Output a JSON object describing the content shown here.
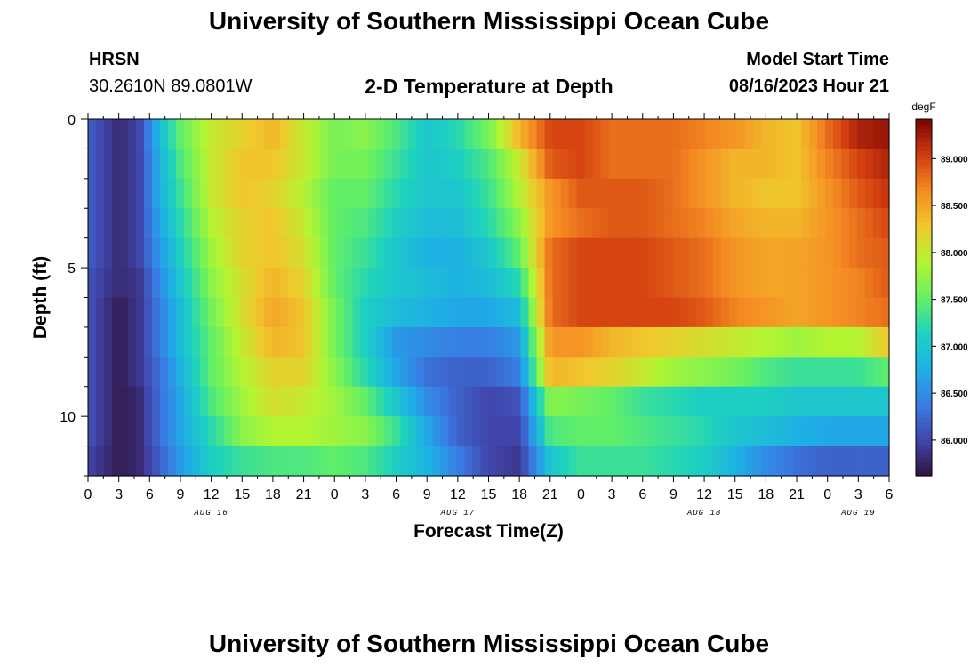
{
  "page": {
    "title_top": "University of Southern Mississippi Ocean Cube",
    "title_bottom": "University of Southern Mississippi Ocean Cube",
    "station": "HRSN",
    "coords": "30.2610N  89.0801W",
    "plot_title": "2-D Temperature at Depth",
    "model_label": "Model Start Time",
    "model_time": "08/16/2023 Hour 21"
  },
  "chart_data": {
    "type": "heatmap",
    "title": "2-D Temperature at Depth",
    "xlabel": "Forecast Time(Z)",
    "ylabel": "Depth (ft)",
    "x_range_hours": [
      0,
      78
    ],
    "y_range_ft": [
      0,
      12
    ],
    "x_tick_labels": [
      "0",
      "3",
      "6",
      "9",
      "12",
      "15",
      "18",
      "21",
      "0",
      "3",
      "6",
      "9",
      "12",
      "15",
      "18",
      "21",
      "0",
      "3",
      "6",
      "9",
      "12",
      "15",
      "18",
      "21",
      "0",
      "3",
      "6"
    ],
    "y_tick_labels": [
      "0",
      "5",
      "10"
    ],
    "day_labels": [
      {
        "label": "AUG 16",
        "hour": 12
      },
      {
        "label": "AUG 17",
        "hour": 36
      },
      {
        "label": "AUG 18",
        "hour": 60
      },
      {
        "label": "AUG 19",
        "hour": 75
      }
    ],
    "colorbar": {
      "unit": "degF",
      "min": 85.62,
      "max": 89.42,
      "ticks": [
        "86.000",
        "86.500",
        "87.000",
        "87.500",
        "88.000",
        "88.500",
        "89.000"
      ]
    },
    "depth_layers_ft": [
      0.5,
      1.5,
      2.5,
      3.5,
      4.5,
      5.5,
      6.5,
      7.5,
      8.5,
      9.5,
      10.5,
      11.5
    ],
    "keyframes_hours": [
      0,
      3,
      5,
      7,
      9,
      12,
      15,
      18,
      21,
      24,
      27,
      30,
      33,
      36,
      39,
      42,
      45,
      48,
      51,
      54,
      57,
      60,
      63,
      66,
      69,
      72,
      75,
      78
    ],
    "temperature_degF": [
      [
        86.2,
        85.8,
        86.0,
        86.9,
        87.5,
        88.0,
        88.2,
        88.4,
        88.0,
        87.6,
        87.7,
        87.4,
        87.0,
        87.2,
        87.6,
        88.4,
        89.0,
        89.0,
        88.8,
        88.8,
        88.8,
        88.7,
        88.6,
        88.4,
        88.3,
        88.8,
        89.2,
        89.3
      ],
      [
        86.2,
        85.8,
        86.0,
        86.8,
        87.4,
        88.0,
        88.3,
        88.3,
        88.0,
        87.6,
        87.6,
        87.3,
        87.0,
        87.1,
        87.4,
        88.0,
        88.9,
        89.0,
        88.8,
        88.8,
        88.8,
        88.6,
        88.4,
        88.4,
        88.3,
        88.7,
        89.0,
        89.2
      ],
      [
        86.2,
        85.8,
        86.0,
        86.8,
        87.3,
        88.0,
        88.3,
        88.2,
        87.9,
        87.5,
        87.5,
        87.2,
        87.0,
        87.0,
        87.3,
        87.9,
        88.6,
        88.9,
        88.9,
        88.9,
        88.8,
        88.6,
        88.4,
        88.3,
        88.3,
        88.6,
        88.9,
        89.1
      ],
      [
        86.2,
        85.8,
        86.0,
        86.7,
        87.2,
        87.9,
        88.2,
        88.3,
        88.0,
        87.5,
        87.4,
        87.1,
        86.9,
        86.9,
        87.2,
        87.7,
        88.6,
        88.8,
        88.9,
        88.9,
        88.8,
        88.7,
        88.5,
        88.4,
        88.4,
        88.6,
        88.8,
        89.0
      ],
      [
        86.2,
        85.8,
        86.0,
        86.6,
        87.1,
        87.8,
        88.2,
        88.3,
        88.1,
        87.5,
        87.3,
        87.0,
        86.8,
        86.8,
        87.0,
        87.5,
        88.8,
        89.0,
        89.0,
        89.0,
        88.9,
        88.8,
        88.6,
        88.5,
        88.5,
        88.6,
        88.8,
        88.9
      ],
      [
        86.1,
        85.8,
        85.9,
        86.5,
        87.0,
        87.7,
        88.1,
        88.4,
        88.2,
        87.5,
        87.2,
        87.0,
        86.9,
        86.8,
        86.9,
        87.2,
        88.8,
        89.0,
        89.0,
        89.0,
        88.9,
        88.8,
        88.6,
        88.5,
        88.5,
        88.6,
        88.7,
        88.9
      ],
      [
        86.1,
        85.7,
        85.9,
        86.4,
        86.9,
        87.6,
        88.1,
        88.5,
        88.3,
        87.6,
        87.1,
        86.9,
        86.8,
        86.7,
        86.7,
        86.9,
        88.8,
        89.0,
        89.0,
        89.0,
        89.0,
        88.9,
        88.7,
        88.6,
        88.5,
        88.6,
        88.7,
        88.8
      ],
      [
        86.1,
        85.7,
        85.9,
        86.4,
        86.9,
        87.5,
        88.0,
        88.4,
        88.3,
        87.6,
        87.1,
        86.6,
        86.5,
        86.4,
        86.4,
        86.6,
        88.6,
        88.6,
        88.4,
        88.3,
        88.2,
        88.1,
        88.0,
        87.9,
        87.8,
        87.9,
        87.9,
        88.3
      ],
      [
        86.1,
        85.7,
        85.9,
        86.3,
        86.8,
        87.5,
        87.9,
        88.2,
        88.2,
        87.7,
        87.2,
        86.7,
        86.3,
        86.2,
        86.2,
        86.4,
        88.4,
        88.3,
        88.2,
        88.0,
        87.8,
        87.7,
        87.6,
        87.4,
        87.3,
        87.3,
        87.3,
        87.5
      ],
      [
        86.1,
        85.7,
        85.8,
        86.3,
        86.7,
        87.4,
        87.8,
        88.1,
        88.0,
        87.8,
        87.5,
        87.0,
        86.5,
        86.2,
        86.0,
        86.1,
        87.7,
        87.6,
        87.5,
        87.3,
        87.2,
        87.1,
        87.1,
        87.1,
        87.0,
        87.0,
        87.0,
        87.0
      ],
      [
        86.1,
        85.7,
        85.8,
        86.3,
        86.7,
        87.2,
        87.7,
        87.9,
        87.9,
        87.8,
        87.7,
        87.3,
        86.7,
        86.2,
        86.0,
        86.0,
        87.4,
        87.5,
        87.5,
        87.4,
        87.3,
        87.2,
        87.0,
        86.9,
        86.8,
        86.7,
        86.7,
        86.7
      ],
      [
        86.0,
        85.7,
        85.8,
        86.2,
        86.6,
        87.1,
        87.3,
        87.4,
        87.4,
        87.5,
        87.4,
        87.1,
        86.8,
        86.4,
        86.0,
        85.9,
        87.0,
        87.3,
        87.3,
        87.3,
        87.2,
        87.1,
        86.8,
        86.5,
        86.3,
        86.2,
        86.2,
        86.2
      ]
    ]
  }
}
